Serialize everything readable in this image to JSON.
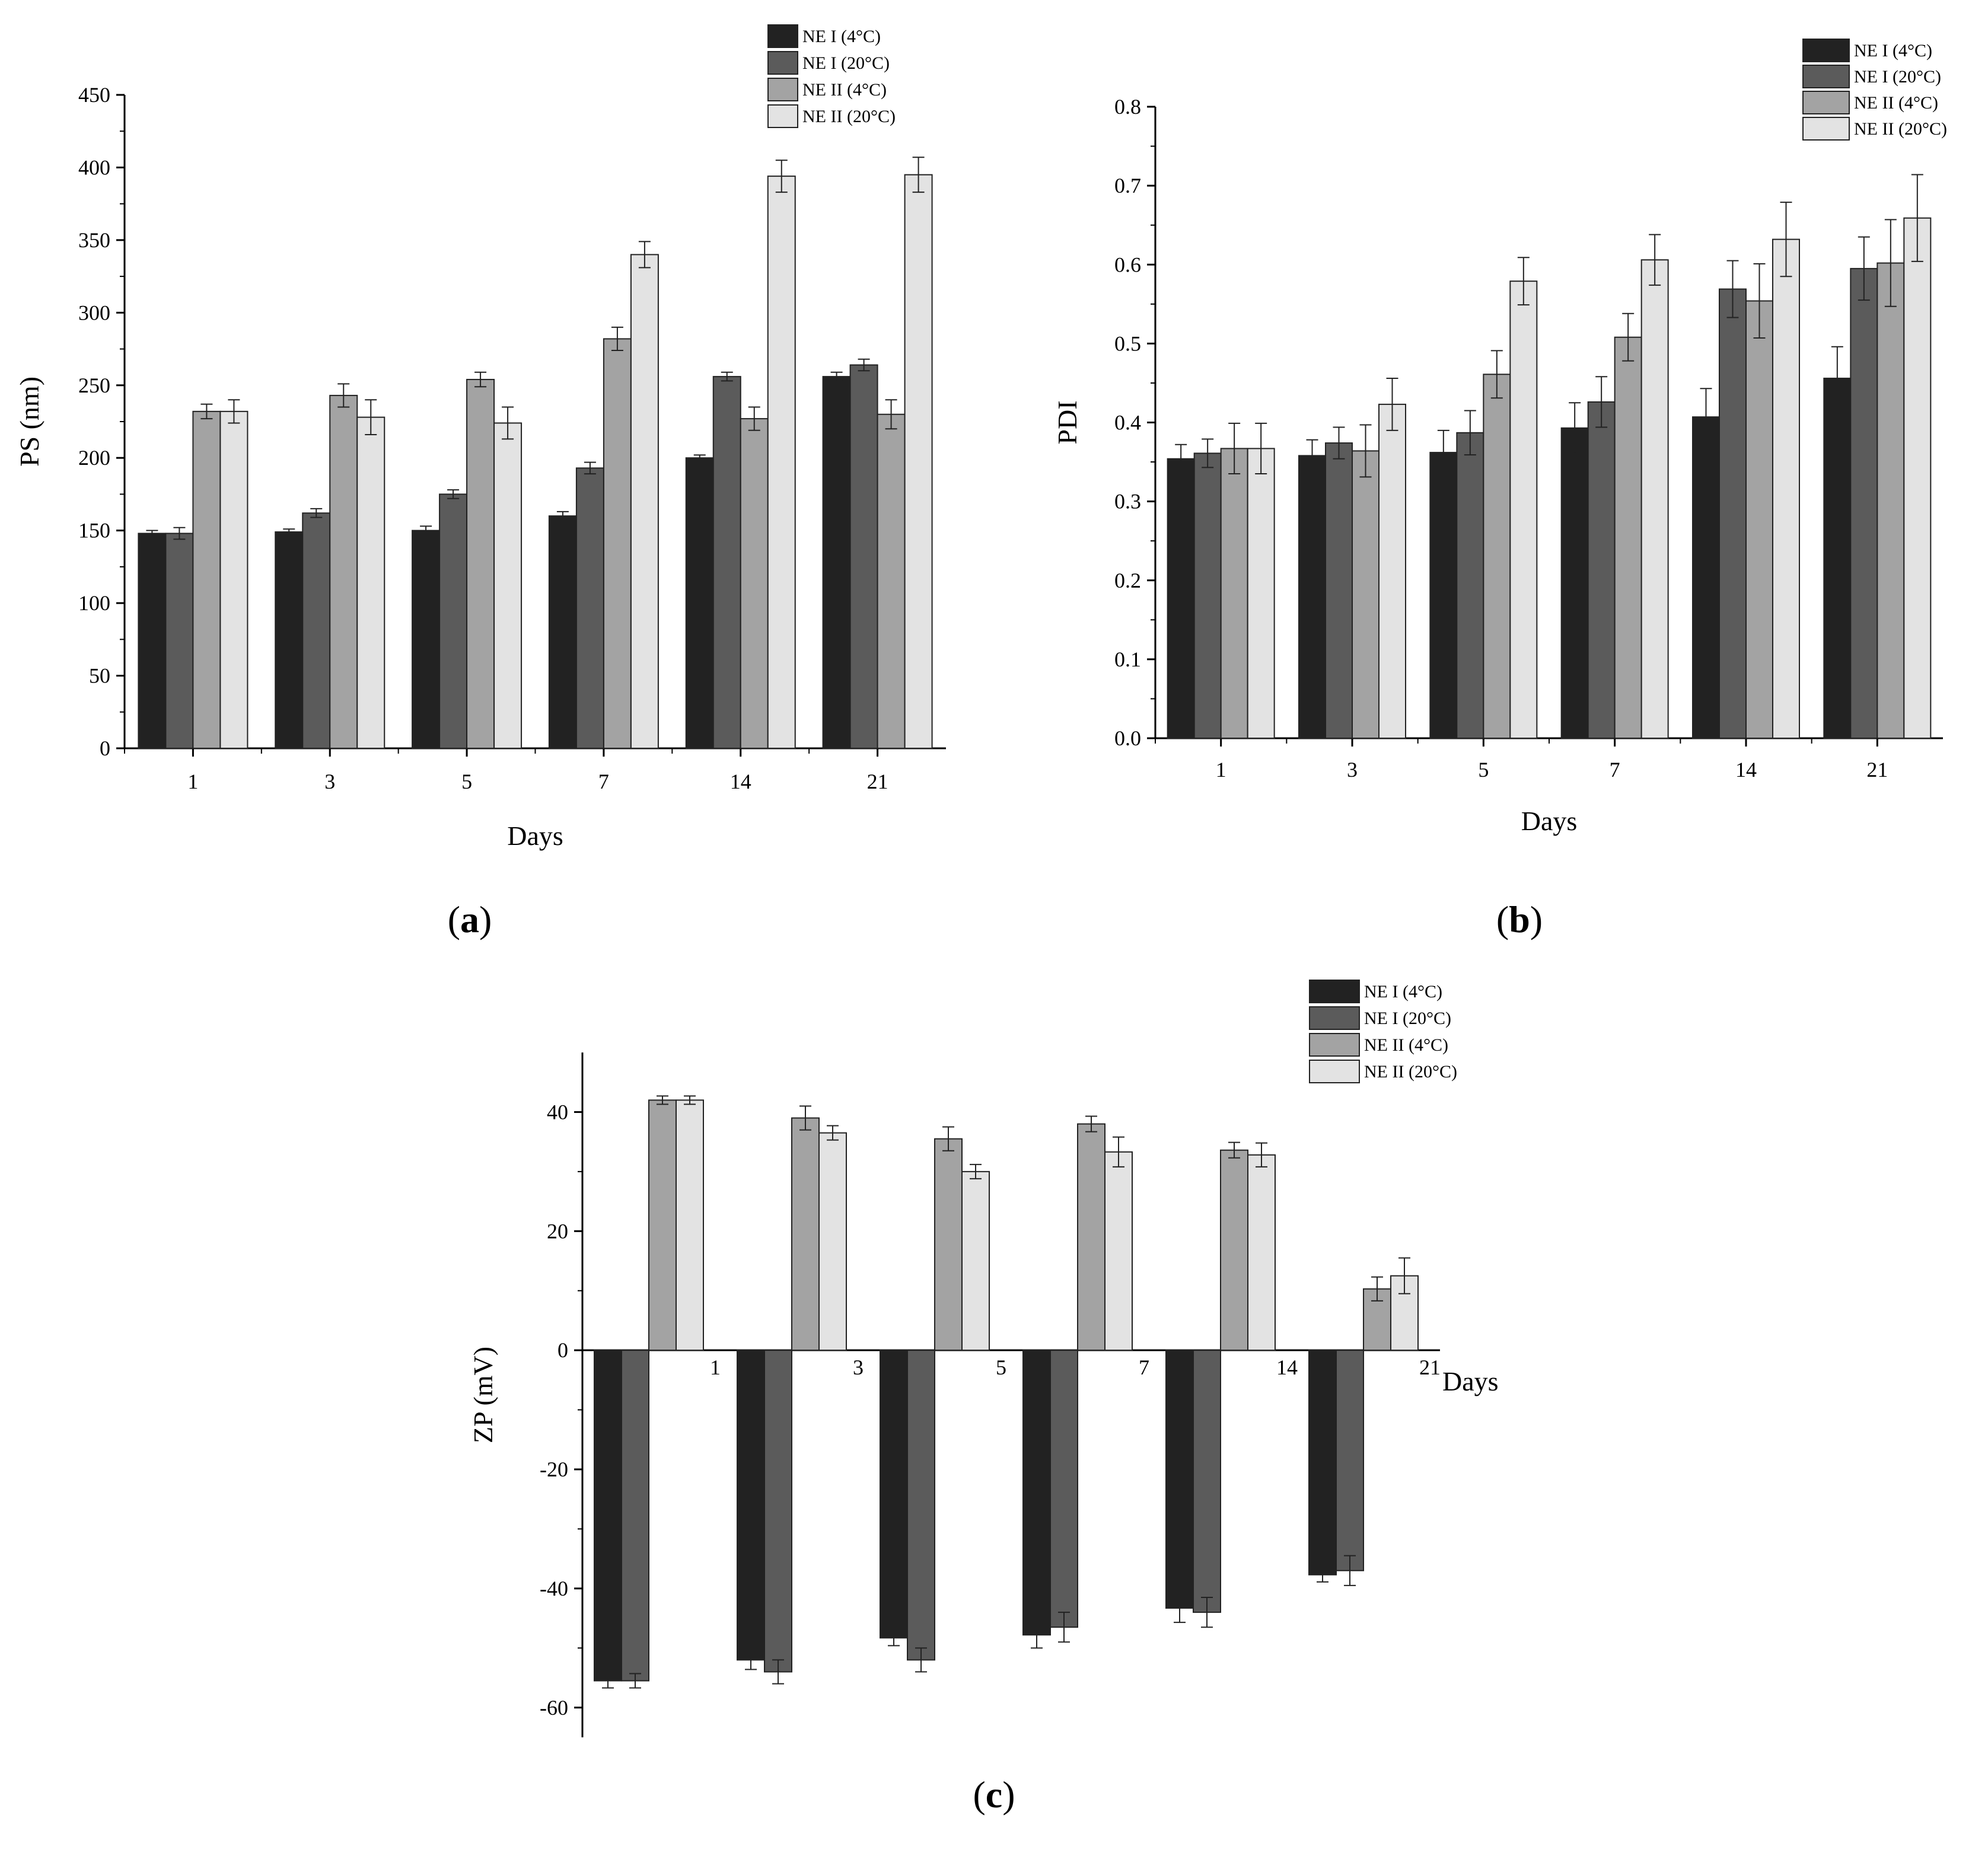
{
  "figure": {
    "panels": [
      {
        "label_open": "(",
        "label_letter": "a",
        "label_close": ")"
      },
      {
        "label_open": "(",
        "label_letter": "b",
        "label_close": ")"
      },
      {
        "label_open": "(",
        "label_letter": "c",
        "label_close": ")"
      }
    ]
  },
  "series_colors": [
    "#222222",
    "#5b5b5b",
    "#a3a3a3",
    "#e3e3e3"
  ],
  "chart_data": [
    {
      "type": "bar",
      "title": "",
      "xlabel": "Days",
      "ylabel": "PS (nm)",
      "categories": [
        "1",
        "3",
        "5",
        "7",
        "14",
        "21"
      ],
      "ylim": [
        0,
        450
      ],
      "yticks": [
        0,
        50,
        100,
        150,
        200,
        250,
        300,
        350,
        400,
        450
      ],
      "legend_position": "top-right",
      "series": [
        {
          "name": "NE I (4°C)",
          "values": [
            148,
            149,
            150,
            160,
            200,
            256
          ],
          "errors": [
            2,
            2,
            3,
            3,
            2,
            3
          ]
        },
        {
          "name": "NE I (20°C)",
          "values": [
            148,
            162,
            175,
            193,
            256,
            264
          ],
          "errors": [
            4,
            3,
            3,
            4,
            3,
            4
          ]
        },
        {
          "name": "NE II (4°C)",
          "values": [
            232,
            243,
            254,
            282,
            227,
            230
          ],
          "errors": [
            5,
            8,
            5,
            8,
            8,
            10
          ]
        },
        {
          "name": "NE II (20°C)",
          "values": [
            232,
            228,
            224,
            340,
            394,
            395
          ],
          "errors": [
            8,
            12,
            11,
            9,
            11,
            12
          ]
        }
      ]
    },
    {
      "type": "bar",
      "title": "",
      "xlabel": "Days",
      "ylabel": "PDI",
      "categories": [
        "1",
        "3",
        "5",
        "7",
        "14",
        "21"
      ],
      "ylim": [
        0,
        0.8
      ],
      "yticks": [
        0.0,
        0.1,
        0.2,
        0.3,
        0.4,
        0.5,
        0.6,
        0.7,
        0.8
      ],
      "ytick_labels": [
        "0.0",
        "0.1",
        "0.2",
        "0.3",
        "0.4",
        "0.5",
        "0.6",
        "0.7",
        "0.8"
      ],
      "legend_position": "top-right",
      "series": [
        {
          "name": "NE I (4°C)",
          "values": [
            0.354,
            0.358,
            0.362,
            0.393,
            0.407,
            0.456
          ],
          "errors": [
            0.018,
            0.02,
            0.028,
            0.032,
            0.036,
            0.04
          ]
        },
        {
          "name": "NE I (20°C)",
          "values": [
            0.361,
            0.374,
            0.387,
            0.426,
            0.569,
            0.595
          ],
          "errors": [
            0.018,
            0.02,
            0.028,
            0.032,
            0.036,
            0.04
          ]
        },
        {
          "name": "NE II (4°C)",
          "values": [
            0.367,
            0.364,
            0.461,
            0.508,
            0.554,
            0.602
          ],
          "errors": [
            0.032,
            0.033,
            0.03,
            0.03,
            0.047,
            0.055
          ]
        },
        {
          "name": "NE II (20°C)",
          "values": [
            0.367,
            0.423,
            0.579,
            0.606,
            0.632,
            0.659
          ],
          "errors": [
            0.032,
            0.033,
            0.03,
            0.032,
            0.047,
            0.055
          ]
        }
      ]
    },
    {
      "type": "bar",
      "title": "",
      "xlabel": "Days",
      "ylabel": "ZP (mV)",
      "categories": [
        "1",
        "3",
        "5",
        "7",
        "14",
        "21"
      ],
      "ylim": [
        -65,
        50
      ],
      "yticks": [
        -60,
        -40,
        -20,
        0,
        20,
        40
      ],
      "legend_position": "top-right",
      "series": [
        {
          "name": "NE I (4°C)",
          "values": [
            -55.5,
            -52,
            -48.3,
            -47.8,
            -43.3,
            -37.7
          ],
          "errors": [
            1.2,
            1.6,
            1.3,
            2.2,
            2.4,
            1.2
          ]
        },
        {
          "name": "NE I (20°C)",
          "values": [
            -55.5,
            -54,
            -52,
            -46.5,
            -44,
            -37
          ],
          "errors": [
            1.2,
            2,
            2,
            2.5,
            2.5,
            2.5
          ]
        },
        {
          "name": "NE II (4°C)",
          "values": [
            42,
            39,
            35.5,
            38,
            33.6,
            10.3
          ],
          "errors": [
            0.7,
            2,
            2,
            1.3,
            1.3,
            2
          ]
        },
        {
          "name": "NE II (20°C)",
          "values": [
            42,
            36.5,
            30,
            33.3,
            32.8,
            12.5
          ],
          "errors": [
            0.7,
            1.2,
            1.2,
            2.5,
            2,
            3
          ]
        }
      ]
    }
  ]
}
